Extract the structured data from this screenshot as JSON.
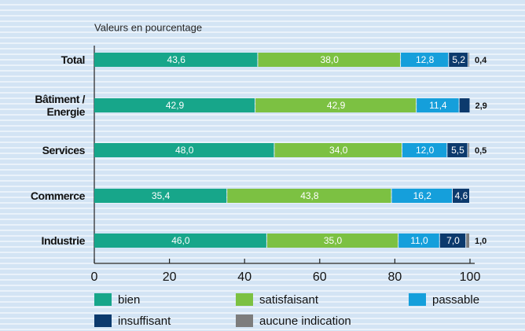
{
  "chart_data": {
    "type": "stacked-bar-horizontal",
    "axis_label": "Valeurs en pourcentage",
    "categories": [
      "Total",
      "Bâtiment / Energie",
      "Services",
      "Commerce",
      "Industrie"
    ],
    "series": [
      {
        "name": "bien",
        "color": "#17a68a",
        "values": [
          43.6,
          42.9,
          48.0,
          35.4,
          46.0
        ],
        "value_labels": [
          "43,6",
          "42,9",
          "48,0",
          "35,4",
          "46,0"
        ]
      },
      {
        "name": "satisfaisant",
        "color": "#7cc142",
        "values": [
          38.0,
          42.9,
          34.0,
          43.8,
          35.0
        ],
        "value_labels": [
          "38,0",
          "42,9",
          "34,0",
          "43,8",
          "35,0"
        ]
      },
      {
        "name": "passable",
        "color": "#159fdb",
        "values": [
          12.8,
          11.4,
          12.0,
          16.2,
          11.0
        ],
        "value_labels": [
          "12,8",
          "11,4",
          "12,0",
          "16,2",
          "11,0"
        ]
      },
      {
        "name": "insuffisant",
        "color": "#0c3a6d",
        "values": [
          5.2,
          2.9,
          5.5,
          4.6,
          7.0
        ],
        "value_labels": [
          "5,2",
          "2,9",
          "5,5",
          "4,6",
          "7,0"
        ]
      },
      {
        "name": "aucune indication",
        "color": "#7d7d7d",
        "values": [
          0.4,
          null,
          0.5,
          null,
          1.0
        ],
        "value_labels": [
          "0,4",
          null,
          "0,5",
          null,
          "1,0"
        ]
      }
    ],
    "xlim": [
      0,
      100
    ],
    "xticks": [
      0,
      20,
      40,
      60,
      80,
      100
    ]
  }
}
